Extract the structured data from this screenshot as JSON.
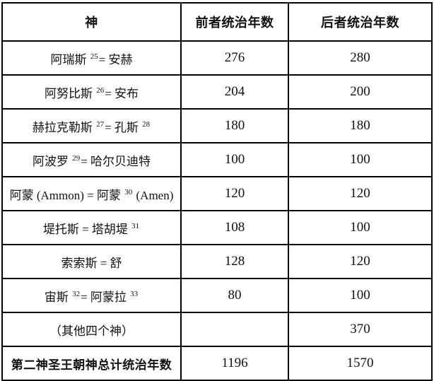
{
  "table": {
    "headers": {
      "god": "神",
      "former": "前者统治年数",
      "latter": "后者统治年数"
    },
    "rows": [
      {
        "god": [
          {
            "text": "阿瑞斯 "
          },
          {
            "sup": "25"
          },
          {
            "text": "= 安赫"
          }
        ],
        "former": "276",
        "latter": "280",
        "bold": false
      },
      {
        "god": [
          {
            "text": "阿努比斯 "
          },
          {
            "sup": "26"
          },
          {
            "text": "= 安布"
          }
        ],
        "former": "204",
        "latter": "200",
        "bold": false
      },
      {
        "god": [
          {
            "text": "赫拉克勒斯 "
          },
          {
            "sup": "27"
          },
          {
            "text": "= 孔斯 "
          },
          {
            "sup": "28"
          }
        ],
        "former": "180",
        "latter": "180",
        "bold": false
      },
      {
        "god": [
          {
            "text": "阿波罗 "
          },
          {
            "sup": "29"
          },
          {
            "text": "= 哈尔贝迪特"
          }
        ],
        "former": "100",
        "latter": "100",
        "bold": false
      },
      {
        "god": [
          {
            "text": "阿蒙 (Ammon) = 阿蒙 "
          },
          {
            "sup": "30"
          },
          {
            "text": " (Amen)"
          }
        ],
        "former": "120",
        "latter": "120",
        "bold": false
      },
      {
        "god": [
          {
            "text": "堤托斯 = 塔胡堤 "
          },
          {
            "sup": "31"
          }
        ],
        "former": "108",
        "latter": "100",
        "bold": false
      },
      {
        "god": [
          {
            "text": "索索斯 = 舒"
          }
        ],
        "former": "128",
        "latter": "120",
        "bold": false
      },
      {
        "god": [
          {
            "text": "宙斯 "
          },
          {
            "sup": "32"
          },
          {
            "text": "= 阿蒙拉 "
          },
          {
            "sup": "33"
          }
        ],
        "former": "80",
        "latter": "100",
        "bold": false
      },
      {
        "god": [
          {
            "text": "（其他四个神）"
          }
        ],
        "former": "",
        "latter": "370",
        "bold": false
      },
      {
        "god": [
          {
            "text": "第二神圣王朝神总计统治年数"
          }
        ],
        "former": "1196",
        "latter": "1570",
        "bold": true
      }
    ]
  },
  "colors": {
    "border": "#000000",
    "text": "#111111",
    "background": "#ffffff"
  }
}
